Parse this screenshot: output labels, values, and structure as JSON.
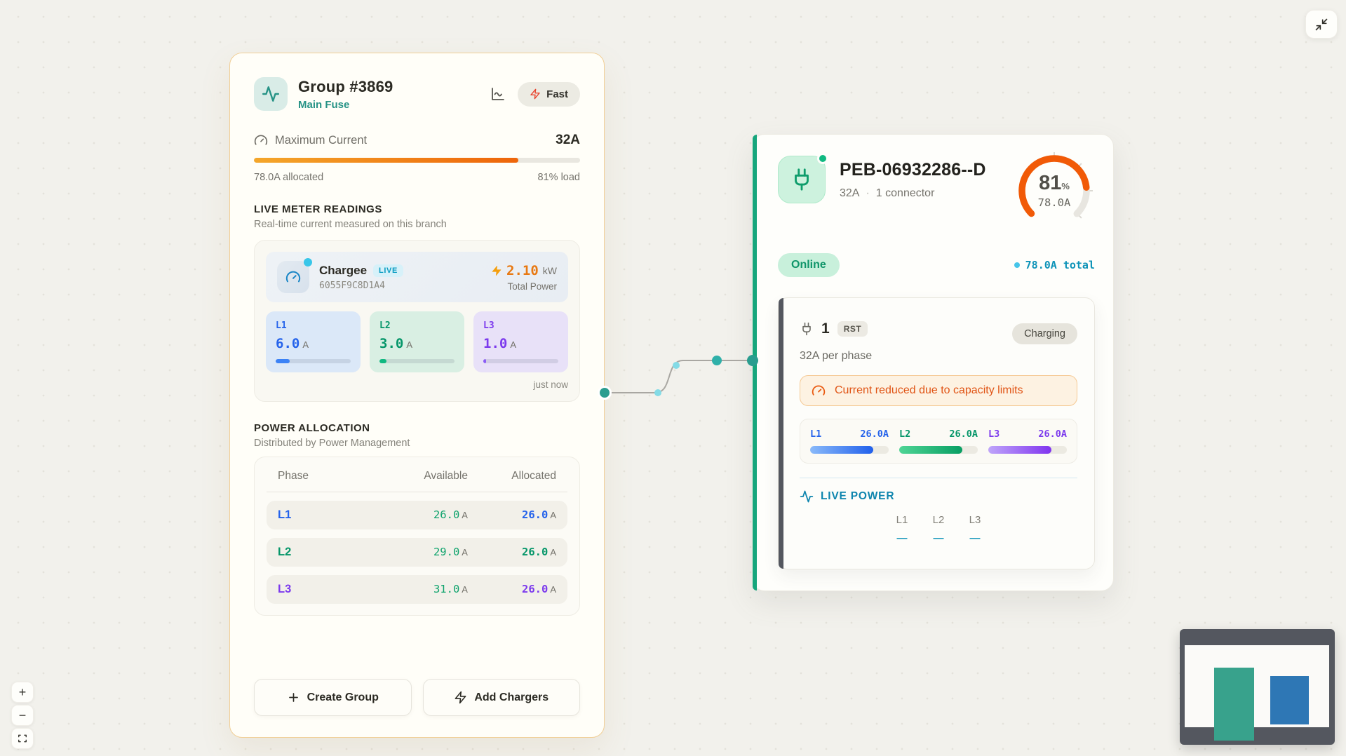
{
  "accents": {
    "group_border": "#f1cf96",
    "teal": "#279386",
    "bar_orange": "#ee650a",
    "gauge_orange": "#f15a07",
    "charger_green": "#16a67c",
    "cyan": "#0d93b8",
    "warning_orange": "#e05415",
    "slate": "#54575f"
  },
  "group_card": {
    "title": "Group #3869",
    "subtitle": "Main Fuse",
    "fast_label": "Fast",
    "max_current_label": "Maximum Current",
    "max_current_value": "32A",
    "load_pct": 81,
    "allocated_label": "78.0A allocated",
    "load_label": "81% load",
    "meter_section": {
      "title": "LIVE METER READINGS",
      "subtitle": "Real-time current measured on this branch",
      "device": {
        "name": "Chargee",
        "badge": "LIVE",
        "id": "6055F9C8D1A4",
        "power_value": "2.10",
        "power_unit": "kW",
        "power_caption": "Total Power"
      },
      "phases": [
        {
          "label": "L1",
          "value": "6.0",
          "unit": "A",
          "pct": 19,
          "color": "#2563eb",
          "tile_bg": "#dbe8f8",
          "bar_color": "#3b82f6"
        },
        {
          "label": "L2",
          "value": "3.0",
          "unit": "A",
          "pct": 9,
          "color": "#059669",
          "tile_bg": "#d9efe3",
          "bar_color": "#10b981"
        },
        {
          "label": "L3",
          "value": "1.0",
          "unit": "A",
          "pct": 4,
          "color": "#7c3aed",
          "tile_bg": "#e8e1f8",
          "bar_color": "#8b5cf6"
        }
      ],
      "updated": "just now"
    },
    "allocation_section": {
      "title": "POWER ALLOCATION",
      "subtitle": "Distributed by Power Management",
      "columns": [
        "Phase",
        "Available",
        "Allocated"
      ],
      "unit": "A",
      "rows": [
        {
          "phase": "L1",
          "color": "#2563eb",
          "available": "26.0",
          "allocated": "26.0"
        },
        {
          "phase": "L2",
          "color": "#059669",
          "available": "29.0",
          "allocated": "26.0"
        },
        {
          "phase": "L3",
          "color": "#7c3aed",
          "available": "31.0",
          "allocated": "26.0"
        }
      ]
    },
    "buttons": {
      "create_group": "Create Group",
      "add_chargers": "Add Chargers"
    }
  },
  "charger_card": {
    "title": "PEB-06932286--D",
    "amps": "32A",
    "separator": "·",
    "connectors": "1 connector",
    "gauge": {
      "pct": 81,
      "value": "81",
      "unit": "%",
      "amps": "78.0A"
    },
    "status": "Online",
    "total_label": "78.0A total",
    "connector": {
      "number": "1",
      "type_badge": "RST",
      "status": "Charging",
      "per_phase": "32A per phase",
      "warning": "Current reduced due to capacity limits",
      "phases": [
        {
          "label": "L1",
          "value": "26.0A",
          "pct": 80,
          "color": "#2563eb",
          "bar_from": "#8abafa",
          "bar_to": "#2160eb"
        },
        {
          "label": "L2",
          "value": "26.0A",
          "pct": 80,
          "color": "#059669",
          "bar_from": "#4fd595",
          "bar_to": "#089e63"
        },
        {
          "label": "L3",
          "value": "26.0A",
          "pct": 80,
          "color": "#7c3aed",
          "bar_from": "#bfa5fa",
          "bar_to": "#8034ef"
        }
      ],
      "live_power": {
        "title": "LIVE POWER",
        "columns": [
          "L1",
          "L2",
          "L3"
        ],
        "values": [
          "—",
          "—",
          "—"
        ]
      }
    }
  },
  "controls": {
    "zoom_in": "+",
    "zoom_out": "−"
  }
}
